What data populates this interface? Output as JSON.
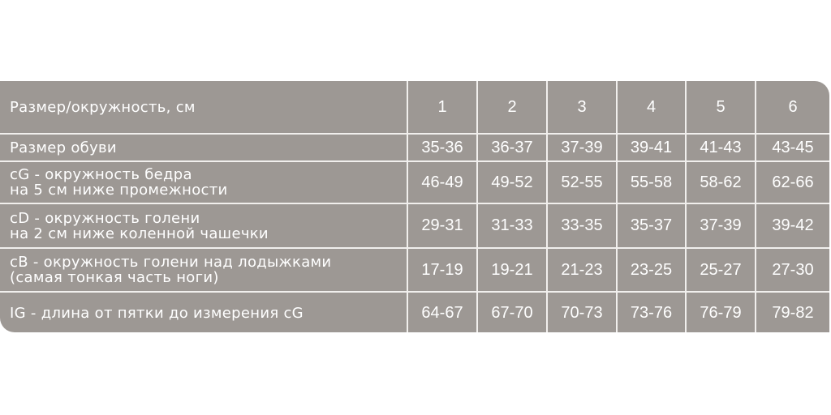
{
  "header": {
    "label": "Размер/окружность, см",
    "sizes": [
      "1",
      "2",
      "3",
      "4",
      "5",
      "6"
    ]
  },
  "rows": [
    {
      "label": "Размер обуви",
      "values": [
        "35-36",
        "36-37",
        "37-39",
        "39-41",
        "41-43",
        "43-45"
      ]
    },
    {
      "label": "cG - окружность бедра\nна 5 см ниже промежности",
      "values": [
        "46-49",
        "49-52",
        "52-55",
        "55-58",
        "58-62",
        "62-66"
      ]
    },
    {
      "label": "cD - окружность  голени\nна 2 см ниже коленной чашечки",
      "values": [
        "29-31",
        "31-33",
        "33-35",
        "35-37",
        "37-39",
        "39-42"
      ]
    },
    {
      "label": "cB - окружность  голени над лодыжками\n(самая тонкая часть ноги)",
      "values": [
        "17-19",
        "19-21",
        "21-23",
        "23-25",
        "25-27",
        "27-30"
      ]
    },
    {
      "label": "IG - длина от пятки до измерения cG",
      "values": [
        "64-67",
        "67-70",
        "70-73",
        "73-76",
        "76-79",
        "79-82"
      ]
    }
  ],
  "colors": {
    "cell": "#9d9894",
    "lines": "#f1efed",
    "text": "#ffffff"
  }
}
